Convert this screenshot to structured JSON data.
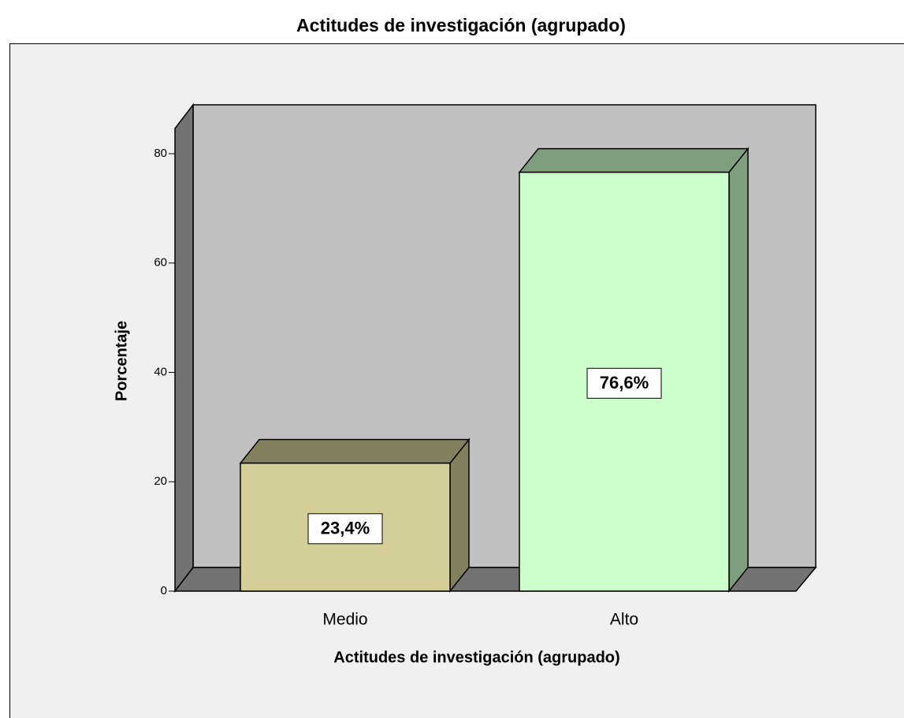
{
  "chart_data": {
    "type": "bar3d",
    "title": "Actitudes de investigación (agrupado)",
    "x_label": "Actitudes de investigación (agrupado)",
    "y_label": "Porcentaje",
    "categories": [
      "Medio",
      "Alto"
    ],
    "values": [
      23.4,
      76.6
    ],
    "value_labels": [
      "23,4%",
      "76,6%"
    ],
    "colors": [
      "#d4cf98",
      "#ccffcc"
    ],
    "ylim": [
      0,
      80
    ],
    "yticks": [
      0,
      20,
      40,
      60,
      80
    ]
  }
}
